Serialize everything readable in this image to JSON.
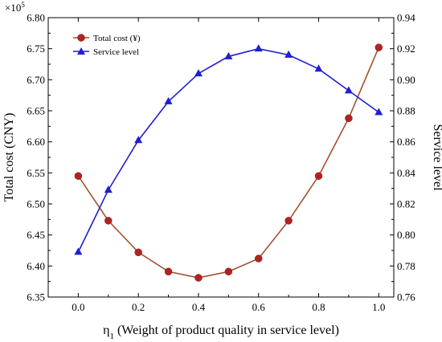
{
  "chart_data": {
    "type": "line",
    "x": [
      0.0,
      0.1,
      0.2,
      0.3,
      0.4,
      0.5,
      0.6,
      0.7,
      0.8,
      0.9,
      1.0
    ],
    "xlabel_main": "η",
    "xlabel_sub": "1",
    "xlabel_rest": " (Weight of product quality in service level)",
    "xlim": [
      -0.1,
      1.05
    ],
    "xticks": [
      "0.0",
      "0.2",
      "0.4",
      "0.6",
      "0.8",
      "1.0"
    ],
    "ylabel_left": "Total cost (CNY)",
    "ylabel_right": "Service level",
    "ylim_left": [
      6.35,
      6.8
    ],
    "ylim_right": [
      0.76,
      0.94
    ],
    "yticks_left": [
      "6.35",
      "6.40",
      "6.45",
      "6.50",
      "6.55",
      "6.60",
      "6.65",
      "6.70",
      "6.75",
      "6.80"
    ],
    "yticks_right": [
      "0.76",
      "0.78",
      "0.80",
      "0.82",
      "0.84",
      "0.86",
      "0.88",
      "0.90",
      "0.92",
      "0.94"
    ],
    "multiplier_base": "×10",
    "multiplier_exp": "5",
    "legend_position": "top-left",
    "series": [
      {
        "name": "Total cost (¥)",
        "axis": "left",
        "color": "#b22222",
        "line_color": "#a0522d",
        "marker": "circle",
        "values": [
          6.545,
          6.473,
          6.422,
          6.391,
          6.381,
          6.391,
          6.412,
          6.473,
          6.545,
          6.638,
          6.752
        ]
      },
      {
        "name": "Service level",
        "axis": "right",
        "color": "#1f1fd0",
        "line_color": "#1f1fd0",
        "marker": "triangle",
        "values": [
          0.789,
          0.829,
          0.861,
          0.886,
          0.904,
          0.915,
          0.92,
          0.916,
          0.907,
          0.893,
          0.879
        ]
      }
    ]
  }
}
